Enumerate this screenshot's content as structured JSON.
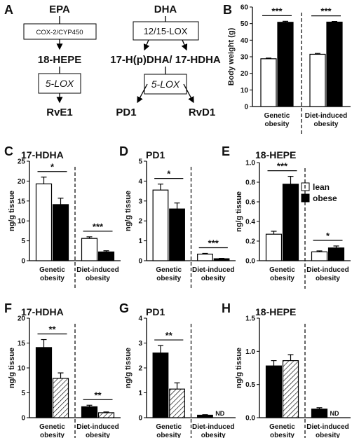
{
  "colors": {
    "lean": "#ffffff",
    "obese": "#000000",
    "hatched": "hatch",
    "stroke": "#000000"
  },
  "pathway": {
    "epa": "EPA",
    "epa_enzyme": "COX-2/CYP450",
    "hepe": "18-HEPE",
    "epa_lox": "5-LOX",
    "rve1": "RvE1",
    "dha": "DHA",
    "dha_enzyme": "12/15-LOX",
    "hdha": "17-H(p)DHA/ 17-HDHA",
    "dha_lox": "5-LOX",
    "pd1": "PD1",
    "rvd1": "RvD1"
  },
  "legend": {
    "lean": "lean",
    "obese": "obese"
  },
  "chart_data": [
    {
      "panel": "B",
      "type": "bar",
      "title": "",
      "ylabel": "Body weight (g)",
      "ylim": [
        0,
        60
      ],
      "yticks": [
        0,
        10,
        20,
        30,
        40,
        50,
        60
      ],
      "groups": [
        "Genetic obesity",
        "Diet-induced obesity"
      ],
      "group_lines": [
        [
          "Genetic",
          "obesity"
        ],
        [
          "Diet-induced",
          "obesity"
        ]
      ],
      "series": [
        {
          "name": "lean",
          "fill": "white",
          "values": [
            28.8,
            31.5
          ],
          "errors": [
            0.4,
            0.5
          ]
        },
        {
          "name": "obese",
          "fill": "black",
          "values": [
            50.8,
            50.9
          ],
          "errors": [
            0.6,
            0.4
          ]
        }
      ],
      "significance": [
        "***",
        "***"
      ]
    },
    {
      "panel": "C",
      "type": "bar",
      "title": "17-HDHA",
      "ylabel": "ng/g tissue",
      "ylim": [
        0,
        25
      ],
      "yticks": [
        0,
        5,
        10,
        15,
        20,
        25
      ],
      "groups": [
        "Genetic obesity",
        "Diet-induced obesity"
      ],
      "group_lines": [
        [
          "Genetic",
          "obesity"
        ],
        [
          "Diet-induced",
          "obesity"
        ]
      ],
      "series": [
        {
          "name": "lean",
          "fill": "white",
          "values": [
            19.3,
            5.6
          ],
          "errors": [
            1.7,
            0.4
          ]
        },
        {
          "name": "obese",
          "fill": "black",
          "values": [
            14.1,
            2.2
          ],
          "errors": [
            1.6,
            0.3
          ]
        }
      ],
      "significance": [
        "*",
        "***"
      ]
    },
    {
      "panel": "D",
      "type": "bar",
      "title": "PD1",
      "ylabel": "ng/g tissue",
      "ylim": [
        0,
        5
      ],
      "yticks": [
        0,
        1,
        2,
        3,
        4,
        5
      ],
      "groups": [
        "Genetic obesity",
        "Diet-induced obesity"
      ],
      "group_lines": [
        [
          "Genetic",
          "obesity"
        ],
        [
          "Diet-induced",
          "obesity"
        ]
      ],
      "series": [
        {
          "name": "lean",
          "fill": "white",
          "values": [
            3.55,
            0.33
          ],
          "errors": [
            0.3,
            0.04
          ]
        },
        {
          "name": "obese",
          "fill": "black",
          "values": [
            2.6,
            0.1
          ],
          "errors": [
            0.3,
            0.02
          ]
        }
      ],
      "significance": [
        "*",
        "***"
      ]
    },
    {
      "panel": "E",
      "type": "bar",
      "title": "18-HEPE",
      "ylabel": "ng/g tissue",
      "ylim": [
        0,
        1.0
      ],
      "yticks": [
        0.0,
        0.2,
        0.4,
        0.6,
        0.8,
        1.0
      ],
      "groups": [
        "Genetic obesity",
        "Diet-induced obesity"
      ],
      "group_lines": [
        [
          "Genetic",
          "obesity"
        ],
        [
          "Diet-induced",
          "obesity"
        ]
      ],
      "series": [
        {
          "name": "lean",
          "fill": "white",
          "values": [
            0.27,
            0.09
          ],
          "errors": [
            0.03,
            0.01
          ]
        },
        {
          "name": "obese",
          "fill": "black",
          "values": [
            0.78,
            0.13
          ],
          "errors": [
            0.08,
            0.02
          ]
        }
      ],
      "significance": [
        "***",
        "*"
      ]
    },
    {
      "panel": "F",
      "type": "bar",
      "title": "17-HDHA",
      "ylabel": "ng/g tissue",
      "ylim": [
        0,
        20
      ],
      "yticks": [
        0,
        5,
        10,
        15,
        20
      ],
      "groups": [
        "Genetic obesity",
        "Diet-induced obesity"
      ],
      "group_lines": [
        [
          "Genetic",
          "obesity"
        ],
        [
          "Diet-induced",
          "obesity"
        ]
      ],
      "series": [
        {
          "name": "obese",
          "fill": "black",
          "values": [
            14.1,
            2.2
          ],
          "errors": [
            1.6,
            0.3
          ]
        },
        {
          "name": "",
          "fill": "hatch",
          "values": [
            7.9,
            1.0
          ],
          "errors": [
            1.1,
            0.15
          ]
        }
      ],
      "significance": [
        "**",
        "**"
      ]
    },
    {
      "panel": "G",
      "type": "bar",
      "title": "PD1",
      "ylabel": "ng/g tissue",
      "ylim": [
        0,
        4
      ],
      "yticks": [
        0,
        1,
        2,
        3,
        4
      ],
      "groups": [
        "Genetic obesity",
        "Diet-induced obesity"
      ],
      "group_lines": [
        [
          "Genetic",
          "obesity"
        ],
        [
          "Diet-induced",
          "obesity"
        ]
      ],
      "series": [
        {
          "name": "obese",
          "fill": "black",
          "values": [
            2.6,
            0.1
          ],
          "errors": [
            0.3,
            0.02
          ]
        },
        {
          "name": "",
          "fill": "hatch",
          "values": [
            1.15,
            null
          ],
          "errors": [
            0.25,
            null
          ]
        }
      ],
      "significance": [
        "**",
        ""
      ],
      "nd_labels": [
        "",
        "ND"
      ]
    },
    {
      "panel": "H",
      "type": "bar",
      "title": "18-HEPE",
      "ylabel": "ng/g tissue",
      "ylim": [
        0,
        1.5
      ],
      "yticks": [
        0.0,
        0.5,
        1.0,
        1.5
      ],
      "groups": [
        "Genetic obesity",
        "Diet-induced obesity"
      ],
      "group_lines": [
        [
          "Genetic",
          "obesity"
        ],
        [
          "Diet-induced",
          "obesity"
        ]
      ],
      "series": [
        {
          "name": "obese",
          "fill": "black",
          "values": [
            0.78,
            0.13
          ],
          "errors": [
            0.08,
            0.02
          ]
        },
        {
          "name": "",
          "fill": "hatch",
          "values": [
            0.86,
            null
          ],
          "errors": [
            0.09,
            null
          ]
        }
      ],
      "significance": [
        "",
        ""
      ],
      "nd_labels": [
        "",
        "ND"
      ]
    }
  ]
}
